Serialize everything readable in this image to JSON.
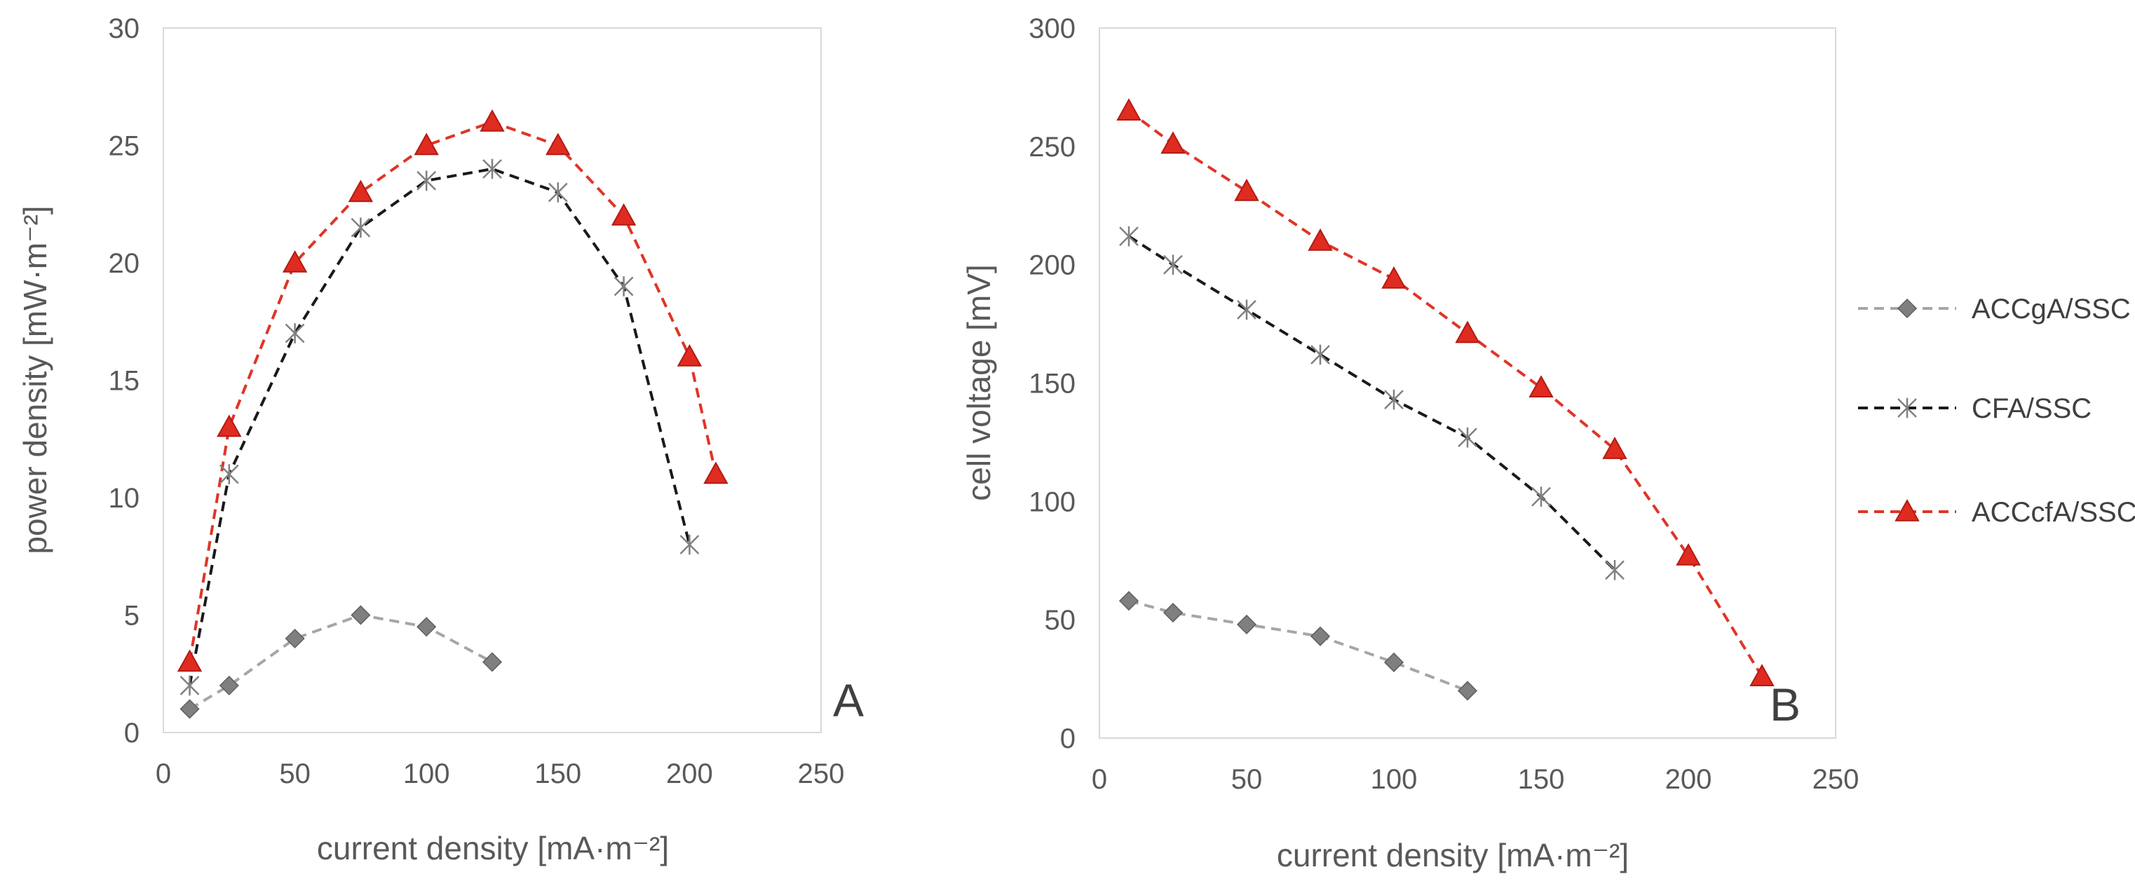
{
  "colors": {
    "ACCgA/SSC": "#a6a6a6",
    "ACCgA/SSC_marker": "#7f7f7f",
    "CFA/SSC": "#1a1a1a",
    "CFA/SSC_marker": "#808080",
    "ACCcfA/SSC": "#e03527",
    "ACCcfA/SSC_marker": "#e02b20"
  },
  "legend": {
    "placement": "right",
    "items": [
      {
        "name": "ACCgA/SSC",
        "marker": "diamond"
      },
      {
        "name": "CFA/SSC",
        "marker": "star"
      },
      {
        "name": "ACCcfA/SSC",
        "marker": "triangle"
      }
    ]
  },
  "chart_data": [
    {
      "type": "line",
      "panel": "A",
      "xlabel": "current density [mA·m⁻²]",
      "ylabel": "power density [mW·m⁻²]",
      "xlim": [
        0,
        250
      ],
      "ylim": [
        0,
        30
      ],
      "xticks": [
        "0",
        "50",
        "100",
        "150",
        "200",
        "250"
      ],
      "yticks": [
        "0",
        "5",
        "10",
        "15",
        "20",
        "25",
        "30"
      ],
      "series": [
        {
          "name": "ACCgA/SSC",
          "marker": "diamond",
          "x": [
            10,
            25,
            50,
            75,
            100,
            125
          ],
          "y": [
            1,
            2,
            4,
            5,
            4.5,
            3
          ]
        },
        {
          "name": "CFA/SSC",
          "marker": "star",
          "x": [
            10,
            25,
            50,
            75,
            100,
            125,
            150,
            175,
            200
          ],
          "y": [
            2,
            11,
            17,
            21.5,
            23.5,
            24,
            23,
            19,
            8
          ]
        },
        {
          "name": "ACCcfA/SSC",
          "marker": "triangle",
          "x": [
            10,
            25,
            50,
            75,
            100,
            125,
            150,
            175,
            200,
            210
          ],
          "y": [
            3,
            13,
            20,
            23,
            25,
            26,
            25,
            22,
            16,
            11
          ]
        }
      ]
    },
    {
      "type": "line",
      "panel": "B",
      "xlabel": "current density [mA·m⁻²]",
      "ylabel": "cell voltage [mV]",
      "xlim": [
        0,
        250
      ],
      "ylim": [
        0,
        300
      ],
      "xticks": [
        "0",
        "50",
        "100",
        "150",
        "200",
        "250"
      ],
      "yticks": [
        "0",
        "50",
        "100",
        "150",
        "200",
        "250",
        "300"
      ],
      "series": [
        {
          "name": "ACCgA/SSC",
          "marker": "diamond",
          "x": [
            10,
            25,
            50,
            75,
            100,
            125
          ],
          "y": [
            58,
            53,
            48,
            43,
            32,
            20
          ]
        },
        {
          "name": "CFA/SSC",
          "marker": "star",
          "x": [
            10,
            25,
            50,
            75,
            100,
            125,
            150,
            175
          ],
          "y": [
            212,
            200,
            181,
            162,
            143,
            127,
            102,
            71
          ]
        },
        {
          "name": "ACCcfA/SSC",
          "marker": "triangle",
          "x": [
            10,
            25,
            50,
            75,
            100,
            125,
            150,
            175,
            200,
            225
          ],
          "y": [
            265,
            251,
            231,
            210,
            194,
            171,
            148,
            122,
            77,
            26
          ]
        }
      ]
    }
  ]
}
